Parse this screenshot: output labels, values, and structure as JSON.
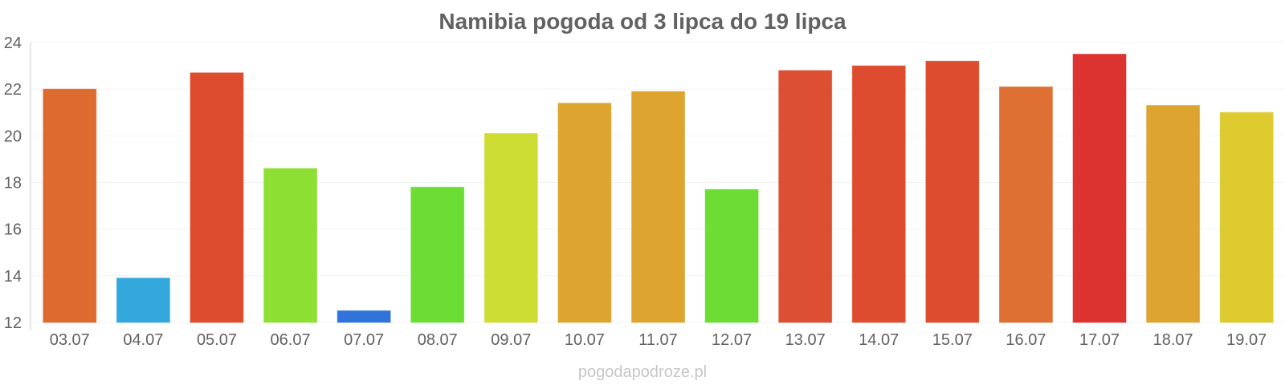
{
  "watermark": "pogodapodroze.pl",
  "chart_data": {
    "type": "bar",
    "title": "Namibia pogoda od 3 lipca do 19 lipca",
    "xlabel": "",
    "ylabel": "",
    "ylim": [
      12,
      24
    ],
    "yticks": [
      12,
      14,
      16,
      18,
      20,
      22,
      24
    ],
    "grid": true,
    "categories": [
      "03.07",
      "04.07",
      "05.07",
      "06.07",
      "07.07",
      "08.07",
      "09.07",
      "10.07",
      "11.07",
      "12.07",
      "13.07",
      "14.07",
      "15.07",
      "16.07",
      "17.07",
      "18.07",
      "19.07"
    ],
    "values": [
      22.0,
      13.9,
      22.7,
      18.6,
      12.5,
      17.8,
      20.1,
      21.4,
      21.9,
      17.7,
      22.8,
      23.0,
      23.2,
      22.1,
      23.5,
      21.3,
      21.0
    ],
    "colors": [
      "#dd6b2f",
      "#33a8dc",
      "#dd4c2f",
      "#8edf33",
      "#3074db",
      "#6bdd35",
      "#cedd33",
      "#dda530",
      "#dda530",
      "#6bdd35",
      "#dd4f32",
      "#dd4c2f",
      "#dd4c2f",
      "#dd7032",
      "#dc3330",
      "#dda530",
      "#dcca2f"
    ]
  }
}
